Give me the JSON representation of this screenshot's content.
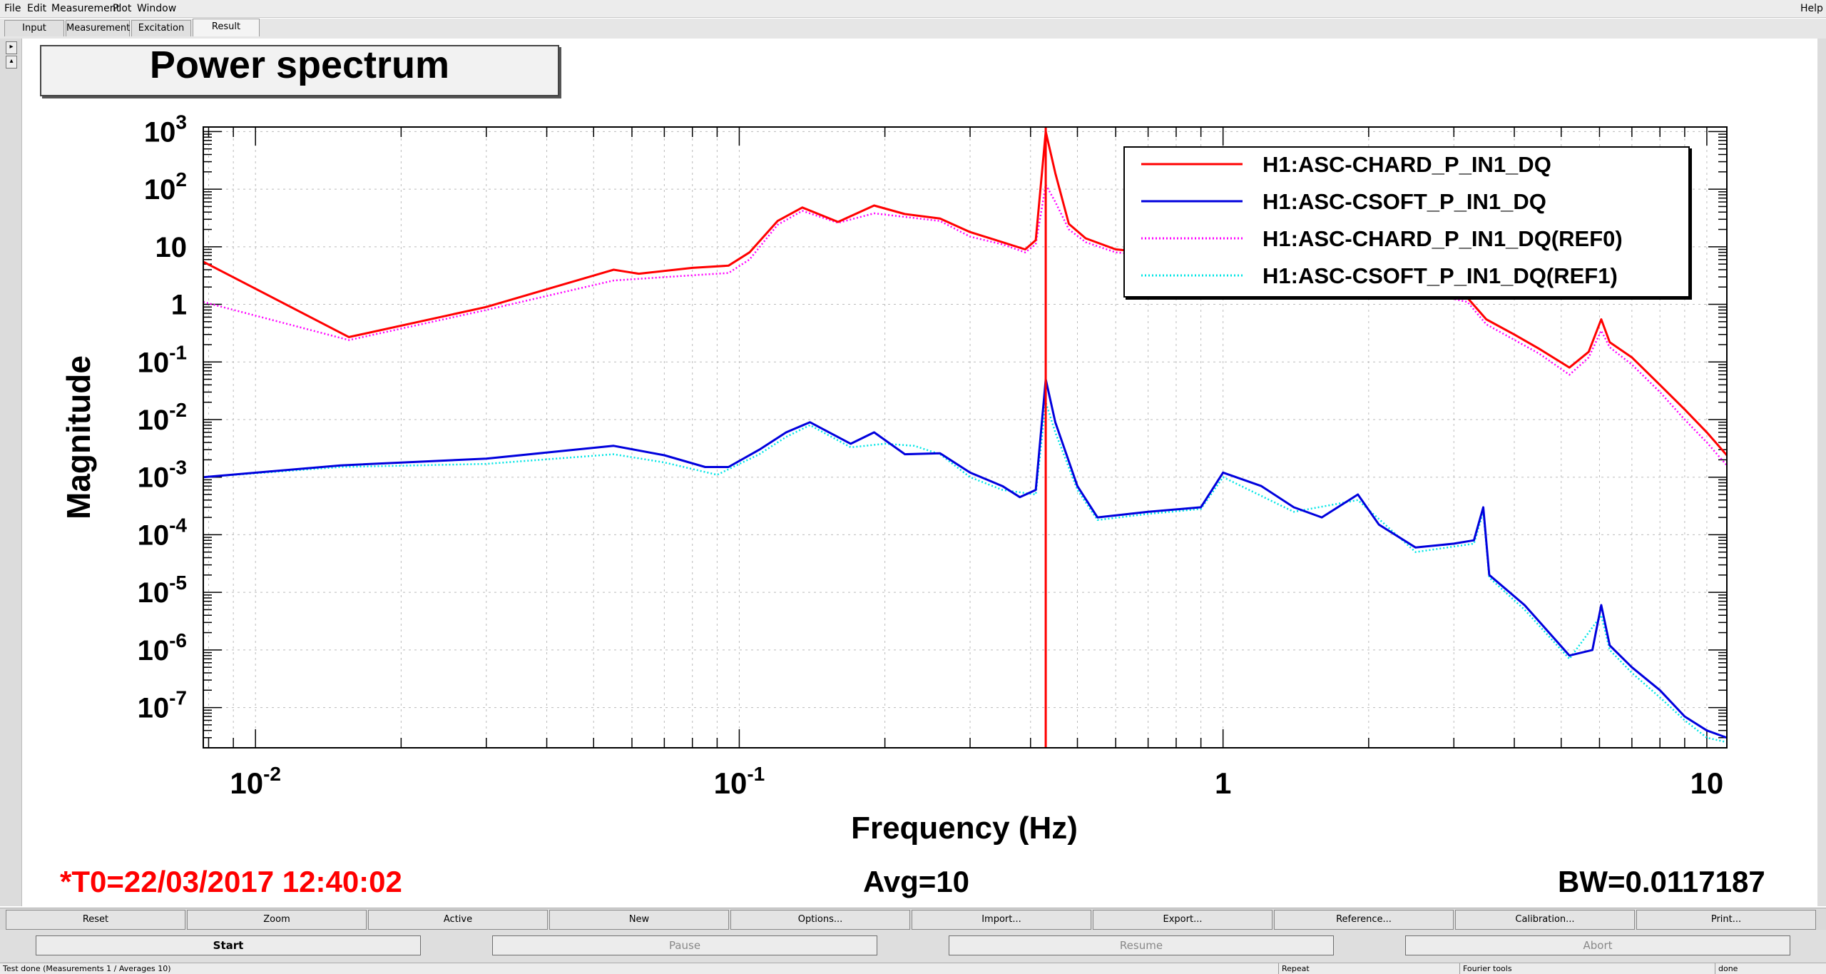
{
  "menu": [
    "File",
    "Edit",
    "Measurement",
    "Plot",
    "Window"
  ],
  "help": "Help",
  "tabs": [
    "Input",
    "Measurement",
    "Excitation",
    "Result"
  ],
  "plot_title": "Power spectrum",
  "t0": "*T0=22/03/2017 12:40:02",
  "avg": "Avg=10",
  "bw": "BW=0.0117187",
  "toolbar": [
    "Reset",
    "Zoom",
    "Active",
    "New",
    "Options...",
    "Import...",
    "Export...",
    "Reference...",
    "Calibration...",
    "Print..."
  ],
  "controls": [
    "Start",
    "Pause",
    "Resume",
    "Abort"
  ],
  "status": {
    "message": "Test done (Measurements 1 / Averages 10)",
    "repeat": "Repeat",
    "mode": "Fourier tools",
    "state": "done"
  },
  "colors": {
    "chard": "#ff0000",
    "csoft": "#0000dd",
    "ref0": "#ff00ff",
    "ref1": "#00e5e5",
    "t0": "#ff0000"
  },
  "chart_data": {
    "type": "line",
    "title": "Power spectrum",
    "xlabel": "Frequency (Hz)",
    "ylabel": "Magnitude",
    "xscale": "log",
    "yscale": "log",
    "xlim": [
      0.0078,
      11
    ],
    "ylim": [
      2e-08,
      1200
    ],
    "x_ticks": [
      {
        "v": 0.01,
        "base": "10",
        "exp": "-2"
      },
      {
        "v": 0.1,
        "base": "10",
        "exp": "-1"
      },
      {
        "v": 1,
        "base": "1",
        "exp": ""
      },
      {
        "v": 10,
        "base": "10",
        "exp": ""
      }
    ],
    "y_ticks": [
      {
        "v": 1e-07,
        "base": "10",
        "exp": "-7"
      },
      {
        "v": 1e-06,
        "base": "10",
        "exp": "-6"
      },
      {
        "v": 1e-05,
        "base": "10",
        "exp": "-5"
      },
      {
        "v": 0.0001,
        "base": "10",
        "exp": "-4"
      },
      {
        "v": 0.001,
        "base": "10",
        "exp": "-3"
      },
      {
        "v": 0.01,
        "base": "10",
        "exp": "-2"
      },
      {
        "v": 0.1,
        "base": "10",
        "exp": "-1"
      },
      {
        "v": 1,
        "base": "1",
        "exp": ""
      },
      {
        "v": 10,
        "base": "10",
        "exp": ""
      },
      {
        "v": 100,
        "base": "10",
        "exp": "2"
      },
      {
        "v": 1000,
        "base": "10",
        "exp": "3"
      }
    ],
    "legend_position": "top-right",
    "grid": true,
    "cursor_x": 0.43,
    "series": [
      {
        "name": "H1:ASC-CHARD_P_IN1_DQ",
        "color": "#ff0000",
        "style": "solid",
        "points": [
          [
            0.0078,
            5.5
          ],
          [
            0.0156,
            0.27
          ],
          [
            0.03,
            0.9
          ],
          [
            0.055,
            4
          ],
          [
            0.062,
            3.4
          ],
          [
            0.08,
            4.3
          ],
          [
            0.095,
            4.7
          ],
          [
            0.105,
            8
          ],
          [
            0.12,
            28
          ],
          [
            0.135,
            48
          ],
          [
            0.16,
            27
          ],
          [
            0.19,
            52
          ],
          [
            0.22,
            37
          ],
          [
            0.26,
            31
          ],
          [
            0.3,
            18
          ],
          [
            0.35,
            12
          ],
          [
            0.39,
            9
          ],
          [
            0.41,
            13
          ],
          [
            0.43,
            1000
          ],
          [
            0.45,
            190
          ],
          [
            0.48,
            25
          ],
          [
            0.52,
            14
          ],
          [
            0.6,
            9
          ],
          [
            0.7,
            8
          ],
          [
            0.8,
            7
          ],
          [
            1.0,
            6
          ],
          [
            1.2,
            5
          ],
          [
            1.5,
            4
          ],
          [
            2.0,
            2.8
          ],
          [
            2.5,
            2
          ],
          [
            3.2,
            1.3
          ],
          [
            3.5,
            0.55
          ],
          [
            4.0,
            0.3
          ],
          [
            4.5,
            0.17
          ],
          [
            5.2,
            0.08
          ],
          [
            5.7,
            0.15
          ],
          [
            6.05,
            0.55
          ],
          [
            6.3,
            0.22
          ],
          [
            7,
            0.12
          ],
          [
            8,
            0.04
          ],
          [
            9,
            0.015
          ],
          [
            10,
            0.006
          ],
          [
            11,
            0.0024
          ]
        ]
      },
      {
        "name": "H1:ASC-CSOFT_P_IN1_DQ",
        "color": "#0000dd",
        "style": "solid",
        "points": [
          [
            0.0078,
            0.001
          ],
          [
            0.015,
            0.0016
          ],
          [
            0.03,
            0.0021
          ],
          [
            0.055,
            0.0035
          ],
          [
            0.07,
            0.0024
          ],
          [
            0.085,
            0.0015
          ],
          [
            0.095,
            0.0015
          ],
          [
            0.11,
            0.003
          ],
          [
            0.125,
            0.006
          ],
          [
            0.14,
            0.009
          ],
          [
            0.17,
            0.0038
          ],
          [
            0.19,
            0.006
          ],
          [
            0.22,
            0.0025
          ],
          [
            0.26,
            0.0026
          ],
          [
            0.3,
            0.0012
          ],
          [
            0.35,
            0.0007
          ],
          [
            0.38,
            0.00045
          ],
          [
            0.41,
            0.0006
          ],
          [
            0.43,
            0.05
          ],
          [
            0.45,
            0.009
          ],
          [
            0.5,
            0.0007
          ],
          [
            0.55,
            0.0002
          ],
          [
            0.7,
            0.00025
          ],
          [
            0.9,
            0.0003
          ],
          [
            1.0,
            0.0012
          ],
          [
            1.2,
            0.0007
          ],
          [
            1.4,
            0.0003
          ],
          [
            1.6,
            0.0002
          ],
          [
            1.9,
            0.0005
          ],
          [
            2.1,
            0.00015
          ],
          [
            2.5,
            6e-05
          ],
          [
            3.0,
            7e-05
          ],
          [
            3.3,
            8e-05
          ],
          [
            3.45,
            0.0003
          ],
          [
            3.55,
            2e-05
          ],
          [
            4.2,
            6e-06
          ],
          [
            5.2,
            8e-07
          ],
          [
            5.8,
            1e-06
          ],
          [
            6.05,
            6e-06
          ],
          [
            6.3,
            1.2e-06
          ],
          [
            7,
            5e-07
          ],
          [
            8,
            2e-07
          ],
          [
            9,
            7e-08
          ],
          [
            10,
            4e-08
          ],
          [
            11,
            3e-08
          ]
        ]
      },
      {
        "name": "H1:ASC-CHARD_P_IN1_DQ(REF0)",
        "color": "#ff00ff",
        "style": "dotted",
        "points": [
          [
            0.0078,
            1.1
          ],
          [
            0.0156,
            0.24
          ],
          [
            0.03,
            0.8
          ],
          [
            0.055,
            2.6
          ],
          [
            0.08,
            3.2
          ],
          [
            0.095,
            3.5
          ],
          [
            0.105,
            6
          ],
          [
            0.12,
            24
          ],
          [
            0.135,
            42
          ],
          [
            0.16,
            26
          ],
          [
            0.19,
            38
          ],
          [
            0.22,
            33
          ],
          [
            0.26,
            28
          ],
          [
            0.3,
            15
          ],
          [
            0.35,
            11
          ],
          [
            0.39,
            8
          ],
          [
            0.41,
            11
          ],
          [
            0.43,
            120
          ],
          [
            0.45,
            60
          ],
          [
            0.48,
            20
          ],
          [
            0.52,
            12
          ],
          [
            0.6,
            8
          ],
          [
            0.8,
            6.5
          ],
          [
            1.0,
            5.5
          ],
          [
            1.5,
            3.5
          ],
          [
            2.0,
            2.6
          ],
          [
            3.2,
            1.1
          ],
          [
            3.5,
            0.45
          ],
          [
            4.5,
            0.14
          ],
          [
            5.2,
            0.06
          ],
          [
            5.7,
            0.12
          ],
          [
            6.05,
            0.35
          ],
          [
            6.3,
            0.18
          ],
          [
            7,
            0.09
          ],
          [
            8,
            0.03
          ],
          [
            9,
            0.01
          ],
          [
            10,
            0.004
          ],
          [
            11,
            0.0016
          ]
        ]
      },
      {
        "name": "H1:ASC-CSOFT_P_IN1_DQ(REF1)",
        "color": "#00e5e5",
        "style": "dotted",
        "points": [
          [
            0.0078,
            0.001
          ],
          [
            0.015,
            0.0015
          ],
          [
            0.03,
            0.0017
          ],
          [
            0.055,
            0.0025
          ],
          [
            0.07,
            0.0018
          ],
          [
            0.09,
            0.0011
          ],
          [
            0.11,
            0.0025
          ],
          [
            0.125,
            0.005
          ],
          [
            0.14,
            0.008
          ],
          [
            0.17,
            0.0033
          ],
          [
            0.2,
            0.0038
          ],
          [
            0.23,
            0.0035
          ],
          [
            0.26,
            0.0025
          ],
          [
            0.3,
            0.001
          ],
          [
            0.35,
            0.0006
          ],
          [
            0.41,
            0.0005
          ],
          [
            0.43,
            0.02
          ],
          [
            0.45,
            0.006
          ],
          [
            0.5,
            0.0006
          ],
          [
            0.55,
            0.00018
          ],
          [
            0.7,
            0.00023
          ],
          [
            0.9,
            0.00028
          ],
          [
            1.0,
            0.001
          ],
          [
            1.4,
            0.00025
          ],
          [
            1.9,
            0.0004
          ],
          [
            2.5,
            5e-05
          ],
          [
            3.3,
            7e-05
          ],
          [
            3.45,
            0.00025
          ],
          [
            3.55,
            1.8e-05
          ],
          [
            4.2,
            5e-06
          ],
          [
            5.2,
            7e-07
          ],
          [
            6.05,
            4e-06
          ],
          [
            6.3,
            1e-06
          ],
          [
            7,
            4e-07
          ],
          [
            8,
            1.5e-07
          ],
          [
            9,
            6e-08
          ],
          [
            10,
            3e-08
          ],
          [
            11,
            2.5e-08
          ]
        ]
      }
    ]
  }
}
